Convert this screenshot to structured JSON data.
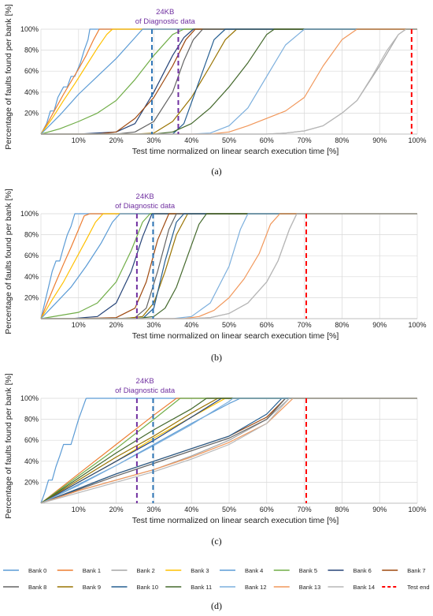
{
  "colors": {
    "Bank 0": "#5b9bd5",
    "Bank 1": "#ed7d31",
    "Bank 2": "#a5a5a5",
    "Bank 3": "#ffc000",
    "Bank 4": "#5b9bd5",
    "Bank 5": "#70ad47",
    "Bank 6": "#264478",
    "Bank 7": "#9e480e",
    "Bank 8": "#636363",
    "Bank 9": "#997300",
    "Bank 10": "#255e91",
    "Bank 11": "#43682b",
    "Bank 12": "#7cafdd",
    "Bank 13": "#f1975a",
    "Bank 14": "#b7b7b7",
    "test_end": "#ff0000",
    "marker_24kb_purple": "#7030a0",
    "marker_24kb_blue": "#2e75b6"
  },
  "legend": {
    "items": [
      "Bank 0",
      "Bank 1",
      "Bank 2",
      "Bank 3",
      "Bank 4",
      "Bank 5",
      "Bank 6",
      "Bank 7",
      "Bank 8",
      "Bank 9",
      "Bank 10",
      "Bank 11",
      "Bank 12",
      "Bank 13",
      "Bank 14",
      "Test end"
    ],
    "label": "(d)"
  },
  "chart_data": [
    {
      "type": "line",
      "panel_label": "(a)",
      "xlabel": "Test time normalized on linear search execution time [%]",
      "ylabel": "Percentage of faults found per bank [%]",
      "xticks": [
        "10%",
        "20%",
        "30%",
        "40%",
        "50%",
        "60%",
        "70%",
        "80%",
        "90%",
        "100%"
      ],
      "yticks": [
        "20%",
        "40%",
        "60%",
        "80%",
        "100%"
      ],
      "xlim": [
        0,
        100
      ],
      "ylim": [
        0,
        100
      ],
      "grid": true,
      "annotation": {
        "lines": [
          "24KB",
          "of Diagnostic data"
        ],
        "markers_x": [
          29.5,
          36.5
        ]
      },
      "test_end_x": 98.5,
      "series": [
        {
          "name": "Bank 0",
          "x": [
            0,
            1.5,
            2.5,
            3.5,
            4.5,
            6,
            7,
            8,
            9,
            10.5,
            11.5,
            12.5,
            13,
            15
          ],
          "y": [
            0,
            10,
            22,
            22,
            35,
            45,
            45,
            55,
            55,
            68,
            80,
            90,
            100,
            100
          ]
        },
        {
          "name": "Bank 1",
          "x": [
            0,
            2,
            4,
            6,
            8,
            10,
            12,
            14,
            15.5,
            17
          ],
          "y": [
            0,
            12,
            25,
            38,
            50,
            62,
            75,
            90,
            100,
            100
          ]
        },
        {
          "name": "Bank 2",
          "x": [
            0,
            5,
            10,
            15,
            20,
            25,
            30,
            35,
            40,
            45,
            50,
            55,
            60,
            65,
            70,
            75,
            80,
            84,
            90,
            95,
            97
          ],
          "y": [
            0,
            0,
            0,
            0,
            0,
            0,
            0,
            0,
            0,
            0,
            0,
            0,
            0,
            1,
            3,
            8,
            20,
            32,
            65,
            95,
            100
          ]
        },
        {
          "name": "Bank 3",
          "x": [
            0,
            3,
            6,
            9,
            12,
            15,
            17.5,
            19
          ],
          "y": [
            0,
            15,
            32,
            48,
            65,
            82,
            95,
            100
          ]
        },
        {
          "name": "Bank 4",
          "x": [
            0,
            5,
            10,
            15,
            20,
            24,
            27
          ],
          "y": [
            0,
            18,
            38,
            55,
            72,
            88,
            100
          ]
        },
        {
          "name": "Bank 5",
          "x": [
            0,
            5,
            10,
            15,
            20,
            25,
            30,
            35,
            38
          ],
          "y": [
            0,
            5,
            12,
            20,
            32,
            52,
            75,
            95,
            100
          ]
        },
        {
          "name": "Bank 6",
          "x": [
            0,
            10,
            20,
            25,
            30,
            35,
            38,
            40.5
          ],
          "y": [
            0,
            0,
            2,
            10,
            40,
            75,
            92,
            100
          ]
        },
        {
          "name": "Bank 7",
          "x": [
            0,
            15,
            20,
            25,
            30,
            35,
            38.5,
            41
          ],
          "y": [
            0,
            0,
            2,
            15,
            35,
            65,
            90,
            100
          ]
        },
        {
          "name": "Bank 8",
          "x": [
            0,
            20,
            25,
            30,
            35,
            38,
            40.5,
            43
          ],
          "y": [
            0,
            0,
            2,
            12,
            40,
            70,
            90,
            100
          ]
        },
        {
          "name": "Bank 9",
          "x": [
            0,
            25,
            30,
            35,
            40,
            45,
            49,
            52
          ],
          "y": [
            0,
            0,
            1,
            12,
            35,
            65,
            90,
            100
          ]
        },
        {
          "name": "Bank 10",
          "x": [
            0,
            35,
            38,
            42,
            46,
            49
          ],
          "y": [
            0,
            0,
            10,
            50,
            90,
            100
          ]
        },
        {
          "name": "Bank 11",
          "x": [
            0,
            30,
            35,
            40,
            45,
            50,
            55,
            60,
            62
          ],
          "y": [
            0,
            0,
            2,
            10,
            25,
            45,
            68,
            95,
            100
          ]
        },
        {
          "name": "Bank 12",
          "x": [
            0,
            40,
            45,
            50,
            55,
            60,
            65,
            70
          ],
          "y": [
            0,
            0,
            1,
            8,
            25,
            55,
            85,
            100
          ]
        },
        {
          "name": "Bank 13",
          "x": [
            0,
            45,
            50,
            55,
            60,
            65,
            70,
            75,
            80,
            84
          ],
          "y": [
            0,
            0,
            2,
            8,
            15,
            22,
            35,
            65,
            90,
            100
          ]
        },
        {
          "name": "Bank 14",
          "x": [
            0,
            50,
            55,
            60,
            65,
            70,
            75,
            80,
            84,
            88,
            92,
            95,
            97
          ],
          "y": [
            0,
            0,
            0,
            0,
            1,
            3,
            8,
            20,
            32,
            55,
            80,
            95,
            100
          ]
        }
      ]
    },
    {
      "type": "line",
      "panel_label": "(b)",
      "xlabel": "Test time normalized on linear search execution time [%]",
      "ylabel": "Percentage of faults found per bank [%]",
      "xticks": [
        "10%",
        "20%",
        "30%",
        "40%",
        "50%",
        "60%",
        "70%",
        "80%",
        "90%",
        "100%"
      ],
      "yticks": [
        "20%",
        "40%",
        "60%",
        "80%",
        "100%"
      ],
      "xlim": [
        0,
        100
      ],
      "ylim": [
        0,
        100
      ],
      "grid": true,
      "annotation": {
        "lines": [
          "24KB",
          "of Diagnostic data"
        ],
        "markers_x": [
          25.5,
          29.8
        ]
      },
      "test_end_x": 70.5,
      "series": [
        {
          "name": "Bank 0",
          "x": [
            0,
            1,
            2,
            3,
            4,
            5,
            6,
            7,
            8,
            9,
            10
          ],
          "y": [
            0,
            15,
            30,
            45,
            55,
            55,
            68,
            80,
            88,
            100,
            100
          ]
        },
        {
          "name": "Bank 1",
          "x": [
            0,
            2,
            4,
            6,
            8,
            10,
            11.5,
            13
          ],
          "y": [
            0,
            18,
            35,
            52,
            68,
            85,
            98,
            100
          ]
        },
        {
          "name": "Bank 2",
          "x": [
            0,
            20,
            30,
            40,
            45,
            50,
            55,
            60,
            63,
            66,
            68
          ],
          "y": [
            0,
            0,
            0,
            0,
            1,
            5,
            15,
            35,
            55,
            85,
            100
          ]
        },
        {
          "name": "Bank 3",
          "x": [
            0,
            3,
            6,
            9,
            12,
            14.5,
            16.5
          ],
          "y": [
            0,
            18,
            35,
            55,
            75,
            92,
            100
          ]
        },
        {
          "name": "Bank 4",
          "x": [
            0,
            4,
            8,
            12,
            16,
            19,
            21
          ],
          "y": [
            0,
            15,
            30,
            50,
            72,
            92,
            100
          ]
        },
        {
          "name": "Bank 5",
          "x": [
            0,
            5,
            10,
            15,
            20,
            24,
            27,
            29
          ],
          "y": [
            0,
            3,
            6,
            15,
            35,
            65,
            92,
            100
          ]
        },
        {
          "name": "Bank 6",
          "x": [
            0,
            8,
            15,
            20,
            24,
            27,
            29.5
          ],
          "y": [
            0,
            0,
            2,
            15,
            45,
            78,
            100
          ]
        },
        {
          "name": "Bank 7",
          "x": [
            0,
            10,
            20,
            25,
            28,
            31,
            34
          ],
          "y": [
            0,
            0,
            1,
            10,
            35,
            75,
            100
          ]
        },
        {
          "name": "Bank 8",
          "x": [
            0,
            20,
            25,
            28,
            31,
            34,
            36
          ],
          "y": [
            0,
            0,
            1,
            10,
            45,
            85,
            100
          ]
        },
        {
          "name": "Bank 9",
          "x": [
            0,
            22,
            27,
            30,
            33,
            36,
            39
          ],
          "y": [
            0,
            0,
            2,
            15,
            45,
            80,
            100
          ]
        },
        {
          "name": "Bank 10",
          "x": [
            0,
            27,
            30,
            33,
            36,
            38
          ],
          "y": [
            0,
            0,
            10,
            55,
            92,
            100
          ]
        },
        {
          "name": "Bank 11",
          "x": [
            0,
            25,
            30,
            33,
            36,
            39,
            42,
            44
          ],
          "y": [
            0,
            0,
            2,
            10,
            30,
            60,
            90,
            100
          ]
        },
        {
          "name": "Bank 12",
          "x": [
            0,
            35,
            40,
            45,
            50,
            53,
            55
          ],
          "y": [
            0,
            0,
            2,
            15,
            50,
            85,
            100
          ]
        },
        {
          "name": "Bank 13",
          "x": [
            0,
            38,
            42,
            46,
            50,
            54,
            58,
            61,
            63.5
          ],
          "y": [
            0,
            0,
            2,
            8,
            20,
            38,
            62,
            90,
            100
          ]
        },
        {
          "name": "Bank 14",
          "x": [
            0,
            40,
            45,
            50,
            55,
            60,
            63,
            66,
            68
          ],
          "y": [
            0,
            0,
            1,
            5,
            15,
            35,
            55,
            85,
            100
          ]
        }
      ]
    },
    {
      "type": "line",
      "panel_label": "(c)",
      "xlabel": "Test time normalized on linear search execution time [%]",
      "ylabel": "Percentage of faults found per bank [%]",
      "xticks": [
        "10%",
        "20%",
        "30%",
        "40%",
        "50%",
        "60%",
        "70%",
        "80%",
        "90%",
        "100%"
      ],
      "yticks": [
        "20%",
        "40%",
        "60%",
        "80%",
        "100%"
      ],
      "xlim": [
        0,
        100
      ],
      "ylim": [
        0,
        100
      ],
      "grid": true,
      "annotation": {
        "lines": [
          "24KB",
          "of Diagnostic data"
        ],
        "markers_x": [
          25.5,
          29.8
        ]
      },
      "test_end_x": 70.5,
      "series": [
        {
          "name": "Bank 0",
          "x": [
            0,
            1,
            2,
            3,
            4,
            5,
            6,
            7,
            8,
            9,
            10,
            11,
            12
          ],
          "y": [
            0,
            10,
            22,
            22,
            35,
            45,
            56,
            56,
            56,
            68,
            80,
            90,
            100
          ]
        },
        {
          "name": "Bank 1",
          "x": [
            0,
            10,
            20,
            30,
            36
          ],
          "y": [
            0,
            28,
            56,
            84,
            100
          ]
        },
        {
          "name": "Bank 2",
          "x": [
            0,
            10,
            20,
            30,
            40,
            50,
            60,
            66
          ],
          "y": [
            0,
            12,
            22,
            32,
            45,
            60,
            80,
            100
          ]
        },
        {
          "name": "Bank 3",
          "x": [
            0,
            10,
            20,
            30,
            40,
            49
          ],
          "y": [
            0,
            20,
            40,
            62,
            82,
            100
          ]
        },
        {
          "name": "Bank 4",
          "x": [
            0,
            10,
            20,
            30,
            40,
            50,
            53
          ],
          "y": [
            0,
            18,
            36,
            56,
            76,
            95,
            100
          ]
        },
        {
          "name": "Bank 5",
          "x": [
            0,
            10,
            20,
            30,
            37
          ],
          "y": [
            0,
            26,
            52,
            80,
            100
          ]
        },
        {
          "name": "Bank 6",
          "x": [
            0,
            10,
            20,
            30,
            40,
            48
          ],
          "y": [
            0,
            20,
            40,
            60,
            82,
            100
          ]
        },
        {
          "name": "Bank 7",
          "x": [
            0,
            10,
            20,
            30,
            40,
            50,
            60,
            65
          ],
          "y": [
            0,
            14,
            28,
            40,
            52,
            64,
            82,
            100
          ]
        },
        {
          "name": "Bank 8",
          "x": [
            0,
            10,
            20,
            30,
            40,
            50,
            60,
            65
          ],
          "y": [
            0,
            13,
            26,
            38,
            50,
            62,
            80,
            100
          ]
        },
        {
          "name": "Bank 9",
          "x": [
            0,
            10,
            20,
            30,
            40,
            47
          ],
          "y": [
            0,
            22,
            44,
            64,
            86,
            100
          ]
        },
        {
          "name": "Bank 10",
          "x": [
            0,
            10,
            20,
            30,
            40,
            50,
            60,
            64
          ],
          "y": [
            0,
            14,
            28,
            40,
            52,
            64,
            85,
            100
          ]
        },
        {
          "name": "Bank 11",
          "x": [
            0,
            10,
            20,
            30,
            40,
            44
          ],
          "y": [
            0,
            24,
            48,
            70,
            90,
            100
          ]
        },
        {
          "name": "Bank 12",
          "x": [
            0,
            10,
            20,
            30,
            40,
            50,
            51
          ],
          "y": [
            0,
            17,
            36,
            55,
            75,
            97,
            100
          ]
        },
        {
          "name": "Bank 13",
          "x": [
            0,
            10,
            20,
            30,
            40,
            50,
            60,
            67
          ],
          "y": [
            0,
            12,
            22,
            32,
            44,
            58,
            76,
            100
          ]
        },
        {
          "name": "Bank 14",
          "x": [
            0,
            10,
            20,
            30,
            40,
            50,
            60,
            66
          ],
          "y": [
            0,
            10,
            20,
            30,
            42,
            56,
            76,
            100
          ]
        }
      ]
    }
  ]
}
